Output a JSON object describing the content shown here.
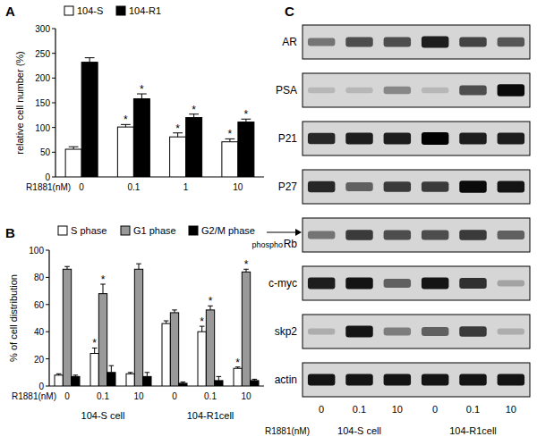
{
  "chart_data": [
    {
      "type": "bar",
      "panel_label": "A",
      "xlabel": "R1881(nM)",
      "ylabel": "relative cell number (%)",
      "categories": [
        "0",
        "0.1",
        "1",
        "10"
      ],
      "series": [
        {
          "name": "104-S",
          "color": "#ffffff",
          "values": [
            56,
            101,
            81,
            71
          ],
          "errors": [
            5,
            5,
            8,
            6
          ],
          "significance": [
            null,
            "*",
            "*",
            "*"
          ]
        },
        {
          "name": "104-R1",
          "color": "#000000",
          "values": [
            232,
            158,
            120,
            111
          ],
          "errors": [
            9,
            10,
            7,
            6
          ],
          "significance": [
            null,
            "*",
            "*",
            "*"
          ]
        }
      ],
      "ylim": [
        0,
        300
      ],
      "yticks": [
        0,
        50,
        100,
        150,
        200,
        250,
        300
      ],
      "legend": "top"
    },
    {
      "type": "bar",
      "panel_label": "B",
      "xlabel": "R1881(nM)",
      "ylabel": "% of cell distribution",
      "categories": [
        "0",
        "0.1",
        "10",
        "0",
        "0.1",
        "10"
      ],
      "category_groups": [
        "104-S cell",
        "104-R1cell"
      ],
      "series": [
        {
          "name": "S phase",
          "color": "#ffffff",
          "values": [
            8,
            24,
            9,
            46,
            40,
            13
          ],
          "errors": [
            1,
            4,
            1,
            2,
            4,
            1
          ],
          "significance": [
            null,
            "*",
            null,
            null,
            "*",
            "*"
          ]
        },
        {
          "name": "G1 phase",
          "color": "#999999",
          "values": [
            86,
            68,
            86,
            54,
            56,
            84
          ],
          "errors": [
            2,
            7,
            4,
            2,
            3,
            2
          ],
          "significance": [
            null,
            "*",
            null,
            null,
            "*",
            "*"
          ]
        },
        {
          "name": "G2/M phase",
          "color": "#000000",
          "values": [
            7,
            10,
            7,
            2,
            4,
            4
          ],
          "errors": [
            1,
            5,
            3,
            1,
            3,
            1
          ],
          "significance": [
            null,
            null,
            null,
            null,
            null,
            null
          ]
        }
      ],
      "ylim": [
        0,
        100
      ],
      "yticks": [
        0,
        20,
        40,
        60,
        80,
        100
      ],
      "legend": "top"
    },
    {
      "type": "blot",
      "panel_label": "C",
      "xlabel": "R1881(nM)",
      "categories": [
        "0",
        "0.1",
        "10",
        "0",
        "0.1",
        "10"
      ],
      "category_groups": [
        "104-S cell",
        "104-R1cell"
      ],
      "series": [
        {
          "name": "AR",
          "values": [
            0.4,
            0.6,
            0.6,
            0.85,
            0.65,
            0.55
          ]
        },
        {
          "name": "PSA",
          "values": [
            0.05,
            0.05,
            0.3,
            0.05,
            0.6,
            0.95
          ]
        },
        {
          "name": "P21",
          "values": [
            0.8,
            0.85,
            0.85,
            1,
            0.85,
            0.85
          ]
        },
        {
          "name": "P27",
          "values": [
            0.8,
            0.5,
            0.7,
            0.7,
            0.95,
            0.9
          ]
        },
        {
          "name": "Rb",
          "annotation": "phospho",
          "values": [
            0.4,
            0.7,
            0.6,
            0.6,
            0.7,
            0.5
          ]
        },
        {
          "name": "c-myc",
          "values": [
            0.85,
            0.9,
            0.5,
            0.9,
            0.75,
            0.15
          ]
        },
        {
          "name": "skp2",
          "values": [
            0.1,
            0.9,
            0.35,
            0.5,
            0.7,
            0.1
          ]
        },
        {
          "name": "actin",
          "values": [
            0.9,
            0.9,
            0.9,
            0.9,
            0.9,
            0.9
          ]
        }
      ]
    }
  ]
}
